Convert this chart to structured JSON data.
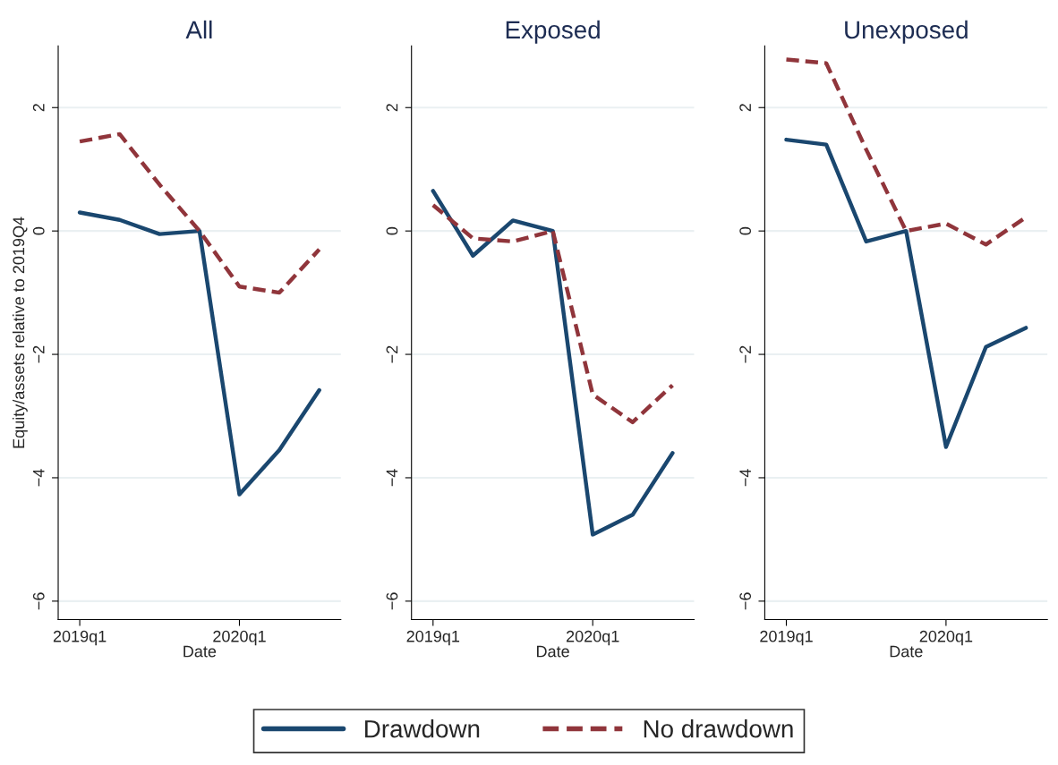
{
  "chart_data": [
    {
      "type": "line",
      "title": "All",
      "xlabel": "Date",
      "ylabel": "Equity/assets relative to 2019Q4",
      "categories": [
        "2019q1",
        null,
        null,
        null,
        "2020q1",
        null,
        null
      ],
      "ylim": [
        -6.3,
        3
      ],
      "yticks": [
        {
          "value": -6,
          "label": "−6"
        },
        {
          "value": -4,
          "label": "−4"
        },
        {
          "value": -2,
          "label": "−2"
        },
        0,
        2
      ],
      "grid": "y",
      "legend": "bottom",
      "series": [
        {
          "name": "Drawdown",
          "color": "#1a476f",
          "line_style": "solid",
          "values": [
            0.3,
            0.18,
            -0.05,
            0,
            -4.27,
            -3.55,
            -2.58
          ]
        },
        {
          "name": "No drawdown",
          "color": "#90353b",
          "line_style": "dashed",
          "values": [
            1.45,
            1.57,
            0.75,
            0,
            -0.9,
            -1.0,
            -0.3
          ]
        }
      ]
    },
    {
      "type": "line",
      "title": "Exposed",
      "xlabel": "Date",
      "categories": [
        "2019q1",
        null,
        null,
        null,
        "2020q1",
        null,
        null
      ],
      "ylim": [
        -6.3,
        3
      ],
      "yticks": [
        {
          "value": -6,
          "label": "−6"
        },
        {
          "value": -4,
          "label": "−4"
        },
        {
          "value": -2,
          "label": "−2"
        },
        0,
        2
      ],
      "grid": "y",
      "series": [
        {
          "color": "#1a476f",
          "line_style": "solid",
          "values": [
            0.65,
            -0.4,
            0.17,
            0,
            -4.92,
            -4.6,
            -3.6
          ]
        },
        {
          "color": "#90353b",
          "line_style": "dashed",
          "values": [
            0.42,
            -0.12,
            -0.17,
            0,
            -2.65,
            -3.1,
            -2.5
          ]
        }
      ]
    },
    {
      "type": "line",
      "title": "Unexposed",
      "xlabel": "Date",
      "categories": [
        "2019q1",
        null,
        null,
        null,
        "2020q1",
        null,
        null
      ],
      "ylim": [
        -6.3,
        3
      ],
      "yticks": [
        {
          "value": -6,
          "label": "−6"
        },
        {
          "value": -4,
          "label": "−4"
        },
        {
          "value": -2,
          "label": "−2"
        },
        0,
        2
      ],
      "grid": "y",
      "series": [
        {
          "color": "#1a476f",
          "line_style": "solid",
          "values": [
            1.48,
            1.4,
            -0.17,
            0,
            -3.5,
            -1.88,
            -1.57
          ]
        },
        {
          "color": "#90353b",
          "line_style": "dashed",
          "values": [
            2.78,
            2.72,
            1.32,
            0,
            0.12,
            -0.22,
            0.22
          ]
        }
      ]
    }
  ]
}
